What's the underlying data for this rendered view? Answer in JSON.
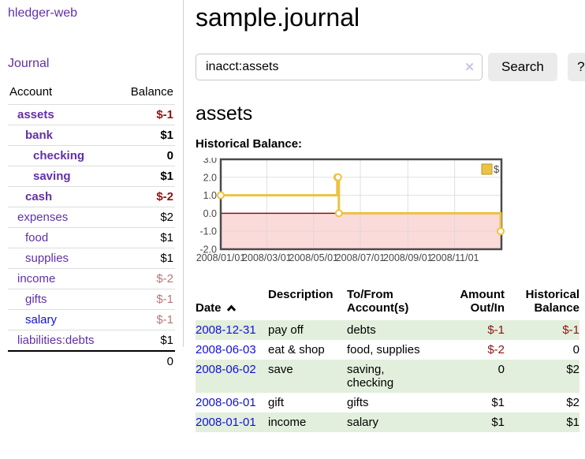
{
  "app": {
    "title": "hledger-web"
  },
  "sidebar": {
    "journal_label": "Journal",
    "accounts_table": {
      "headers": {
        "account": "Account",
        "balance": "Balance"
      },
      "rows": [
        {
          "name": "assets",
          "balance": "$-1",
          "depth": 1,
          "in_account": true,
          "balance_tone": "negative-strong"
        },
        {
          "name": "bank",
          "balance": "$1",
          "depth": 2,
          "in_account": true,
          "balance_tone": "normal"
        },
        {
          "name": "checking",
          "balance": "0",
          "depth": 3,
          "in_account": true,
          "balance_tone": "normal"
        },
        {
          "name": "saving",
          "balance": "$1",
          "depth": 3,
          "in_account": true,
          "balance_tone": "normal"
        },
        {
          "name": "cash",
          "balance": "$-2",
          "depth": 2,
          "in_account": true,
          "balance_tone": "negative-strong"
        },
        {
          "name": "expenses",
          "balance": "$2",
          "depth": 1,
          "in_account": false,
          "balance_tone": "normal"
        },
        {
          "name": "food",
          "balance": "$1",
          "depth": 2,
          "in_account": false,
          "balance_tone": "normal"
        },
        {
          "name": "supplies",
          "balance": "$1",
          "depth": 2,
          "in_account": false,
          "balance_tone": "normal"
        },
        {
          "name": "income",
          "balance": "$-2",
          "depth": 1,
          "in_account": false,
          "balance_tone": "negative-soft"
        },
        {
          "name": "gifts",
          "balance": "$-1",
          "depth": 2,
          "in_account": false,
          "balance_tone": "negative-soft"
        },
        {
          "name": "salary",
          "balance": "$-1",
          "depth": 2,
          "in_account": false,
          "balance_tone": "negative-soft"
        },
        {
          "name": "liabilities:debts",
          "balance": "$1",
          "depth": 1,
          "in_account": false,
          "balance_tone": "normal"
        }
      ],
      "total": "0"
    }
  },
  "header": {
    "title": "sample.journal"
  },
  "search": {
    "value": "inacct:assets",
    "clear_icon": "✕",
    "button_label": "Search",
    "help_label": "?"
  },
  "account_page": {
    "heading": "assets",
    "chart_label": "Historical Balance:"
  },
  "chart_data": {
    "type": "line",
    "title": "Historical Balance:",
    "step": true,
    "series": [
      {
        "name": "$",
        "points": [
          [
            "2008-01-01",
            1
          ],
          [
            "2008-06-01",
            2
          ],
          [
            "2008-06-02",
            2
          ],
          [
            "2008-06-03",
            0
          ],
          [
            "2008-12-31",
            -1
          ]
        ]
      }
    ],
    "x_ticks": [
      "2008/01/01",
      "2008/03/01",
      "2008/05/01",
      "2008/07/01",
      "2008/09/01",
      "2008/11/01"
    ],
    "y_ticks": [
      3.0,
      2.0,
      1.0,
      0.0,
      -1.0,
      -2.0
    ],
    "xlim": [
      "2008-01-01",
      "2009-01-01"
    ],
    "ylim": [
      -2,
      3
    ],
    "legend": {
      "position": "top-right",
      "label": "$"
    },
    "grid": true,
    "colors": {
      "line": "#EDC240",
      "legend_border": "#b69a35",
      "negative_region": "#fbdada",
      "zero_line": "#8b0000",
      "grid": "#d8d8d8",
      "border": "#4a4a4a"
    }
  },
  "register_table": {
    "headers": {
      "date": "Date",
      "description": "Description",
      "accounts": "To/From\nAccount(s)",
      "amount": "Amount\nOut/In",
      "balance": "Historical\nBalance"
    },
    "rows": [
      {
        "date": "2008-12-31",
        "description": "pay off",
        "accounts": "debts",
        "amount": "$-1",
        "balance": "$-1"
      },
      {
        "date": "2008-06-03",
        "description": "eat & shop",
        "accounts": "food, supplies",
        "amount": "$-2",
        "balance": "0"
      },
      {
        "date": "2008-06-02",
        "description": "save",
        "accounts": "saving,\nchecking",
        "amount": "0",
        "balance": "$2"
      },
      {
        "date": "2008-06-01",
        "description": "gift",
        "accounts": "gifts",
        "amount": "$1",
        "balance": "$2"
      },
      {
        "date": "2008-01-01",
        "description": "income",
        "accounts": "salary",
        "amount": "$1",
        "balance": "$1"
      }
    ]
  }
}
